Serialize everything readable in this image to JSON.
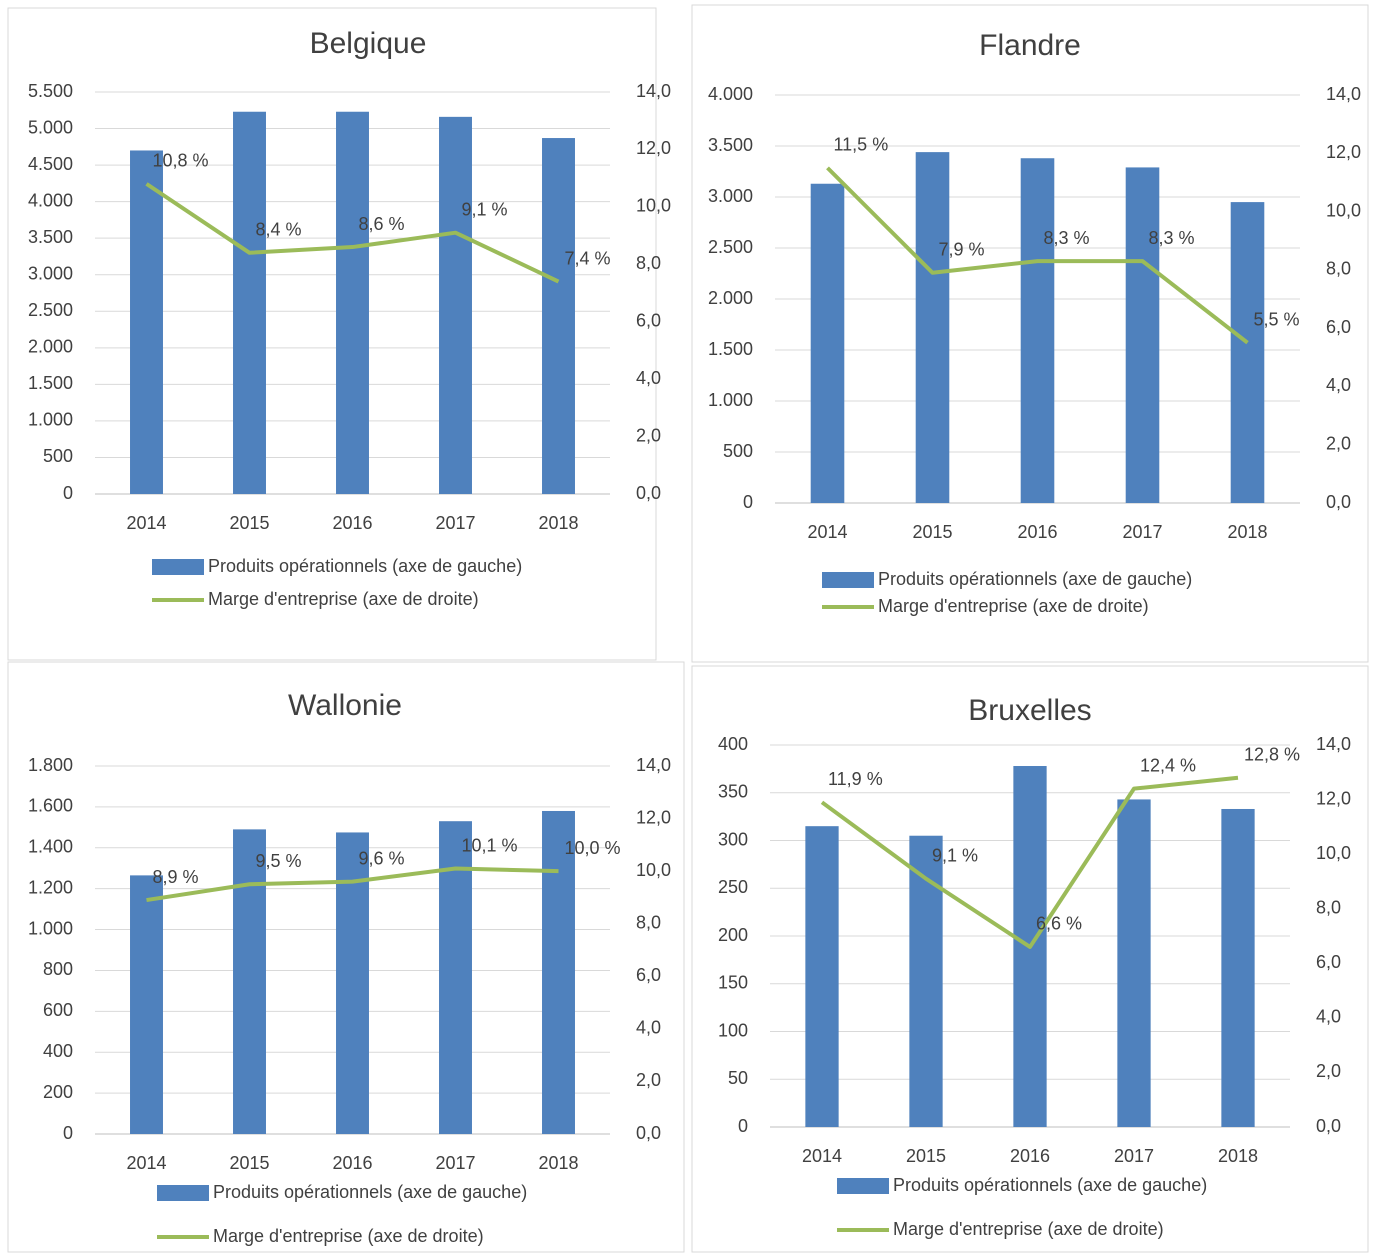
{
  "chart_data": [
    {
      "type": "combo",
      "title": "Belgique",
      "categories": [
        "2014",
        "2015",
        "2016",
        "2017",
        "2018"
      ],
      "series": [
        {
          "name": "Produits opérationnels (axe de gauche)",
          "color": "#4f81bd",
          "type": "bar",
          "values": [
            4700,
            5230,
            5230,
            5160,
            4870
          ]
        },
        {
          "name": "Marge d'entreprise (axe de droite)",
          "color": "#9bbb59",
          "type": "line",
          "axis": "y2",
          "values": [
            10.8,
            8.4,
            8.6,
            9.1,
            7.4
          ],
          "value_labels": [
            "10,8 %",
            "8,4 %",
            "8,6 %",
            "9,1 %",
            "7,4 %"
          ]
        }
      ],
      "ylim": [
        0,
        5500
      ],
      "yticks": [
        0,
        500,
        {
          "value": 1000,
          "label": "1.000"
        },
        {
          "value": 1500,
          "label": "1.500"
        },
        {
          "value": 2000,
          "label": "2.000"
        },
        {
          "value": 2500,
          "label": "2.500"
        },
        {
          "value": 3000,
          "label": "3.000"
        },
        {
          "value": 3500,
          "label": "3.500"
        },
        {
          "value": 4000,
          "label": "4.000"
        },
        {
          "value": 4500,
          "label": "4.500"
        },
        {
          "value": 5000,
          "label": "5.000"
        },
        {
          "value": 5500,
          "label": "5.500"
        }
      ],
      "y2lim": [
        0,
        14
      ],
      "y2ticks": [
        {
          "value": 0,
          "label": "0,0"
        },
        {
          "value": 2,
          "label": "2,0"
        },
        {
          "value": 4,
          "label": "4,0"
        },
        {
          "value": 6,
          "label": "6,0"
        },
        {
          "value": 8,
          "label": "8,0"
        },
        {
          "value": 10,
          "label": "10,0"
        },
        {
          "value": 12,
          "label": "12,0"
        },
        {
          "value": 14,
          "label": "14,0"
        }
      ],
      "grid": true
    },
    {
      "type": "combo",
      "title": "Flandre",
      "categories": [
        "2014",
        "2015",
        "2016",
        "2017",
        "2018"
      ],
      "series": [
        {
          "name": "Produits opérationnels (axe de gauche)",
          "color": "#4f81bd",
          "type": "bar",
          "values": [
            3130,
            3440,
            3380,
            3290,
            2950
          ]
        },
        {
          "name": "Marge d'entreprise (axe de droite)",
          "color": "#9bbb59",
          "type": "line",
          "axis": "y2",
          "values": [
            11.5,
            7.9,
            8.3,
            8.3,
            5.5
          ],
          "value_labels": [
            "11,5 %",
            "7,9 %",
            "8,3 %",
            "8,3 %",
            "5,5 %"
          ]
        }
      ],
      "ylim": [
        0,
        4000
      ],
      "yticks": [
        0,
        500,
        {
          "value": 1000,
          "label": "1.000"
        },
        {
          "value": 1500,
          "label": "1.500"
        },
        {
          "value": 2000,
          "label": "2.000"
        },
        {
          "value": 2500,
          "label": "2.500"
        },
        {
          "value": 3000,
          "label": "3.000"
        },
        {
          "value": 3500,
          "label": "3.500"
        },
        {
          "value": 4000,
          "label": "4.000"
        }
      ],
      "y2lim": [
        0,
        14
      ],
      "y2ticks": [
        {
          "value": 0,
          "label": "0,0"
        },
        {
          "value": 2,
          "label": "2,0"
        },
        {
          "value": 4,
          "label": "4,0"
        },
        {
          "value": 6,
          "label": "6,0"
        },
        {
          "value": 8,
          "label": "8,0"
        },
        {
          "value": 10,
          "label": "10,0"
        },
        {
          "value": 12,
          "label": "12,0"
        },
        {
          "value": 14,
          "label": "14,0"
        }
      ],
      "grid": true
    },
    {
      "type": "combo",
      "title": "Wallonie",
      "categories": [
        "2014",
        "2015",
        "2016",
        "2017",
        "2018"
      ],
      "series": [
        {
          "name": "Produits opérationnels (axe de gauche)",
          "color": "#4f81bd",
          "type": "bar",
          "values": [
            1265,
            1490,
            1475,
            1530,
            1580
          ]
        },
        {
          "name": "Marge d'entreprise (axe de droite)",
          "color": "#9bbb59",
          "type": "line",
          "axis": "y2",
          "values": [
            8.9,
            9.5,
            9.6,
            10.1,
            10.0
          ],
          "value_labels": [
            "8,9 %",
            "9,5 %",
            "9,6 %",
            "10,1 %",
            "10,0 %"
          ]
        }
      ],
      "ylim": [
        0,
        1800
      ],
      "yticks": [
        0,
        200,
        400,
        600,
        800,
        {
          "value": 1000,
          "label": "1.000"
        },
        {
          "value": 1200,
          "label": "1.200"
        },
        {
          "value": 1400,
          "label": "1.400"
        },
        {
          "value": 1600,
          "label": "1.600"
        },
        {
          "value": 1800,
          "label": "1.800"
        }
      ],
      "y2lim": [
        0,
        14
      ],
      "y2ticks": [
        {
          "value": 0,
          "label": "0,0"
        },
        {
          "value": 2,
          "label": "2,0"
        },
        {
          "value": 4,
          "label": "4,0"
        },
        {
          "value": 6,
          "label": "6,0"
        },
        {
          "value": 8,
          "label": "8,0"
        },
        {
          "value": 10,
          "label": "10,0"
        },
        {
          "value": 12,
          "label": "12,0"
        },
        {
          "value": 14,
          "label": "14,0"
        }
      ],
      "grid": true
    },
    {
      "type": "combo",
      "title": "Bruxelles",
      "categories": [
        "2014",
        "2015",
        "2016",
        "2017",
        "2018"
      ],
      "series": [
        {
          "name": "Produits opérationnels (axe de gauche)",
          "color": "#4f81bd",
          "type": "bar",
          "values": [
            315,
            305,
            378,
            343,
            333
          ]
        },
        {
          "name": "Marge d'entreprise (axe de droite)",
          "color": "#9bbb59",
          "type": "line",
          "axis": "y2",
          "values": [
            11.9,
            9.1,
            6.6,
            12.4,
            12.8
          ],
          "value_labels": [
            "11,9 %",
            "9,1 %",
            "6,6 %",
            "12,4 %",
            "12,8 %"
          ]
        }
      ],
      "ylim": [
        0,
        400
      ],
      "yticks": [
        0,
        50,
        100,
        150,
        200,
        250,
        300,
        350,
        400
      ],
      "y2lim": [
        0,
        14
      ],
      "y2ticks": [
        {
          "value": 0,
          "label": "0,0"
        },
        {
          "value": 2,
          "label": "2,0"
        },
        {
          "value": 4,
          "label": "4,0"
        },
        {
          "value": 6,
          "label": "6,0"
        },
        {
          "value": 8,
          "label": "8,0"
        },
        {
          "value": 10,
          "label": "10,0"
        },
        {
          "value": 12,
          "label": "12,0"
        },
        {
          "value": 14,
          "label": "14,0"
        }
      ],
      "grid": true
    }
  ]
}
